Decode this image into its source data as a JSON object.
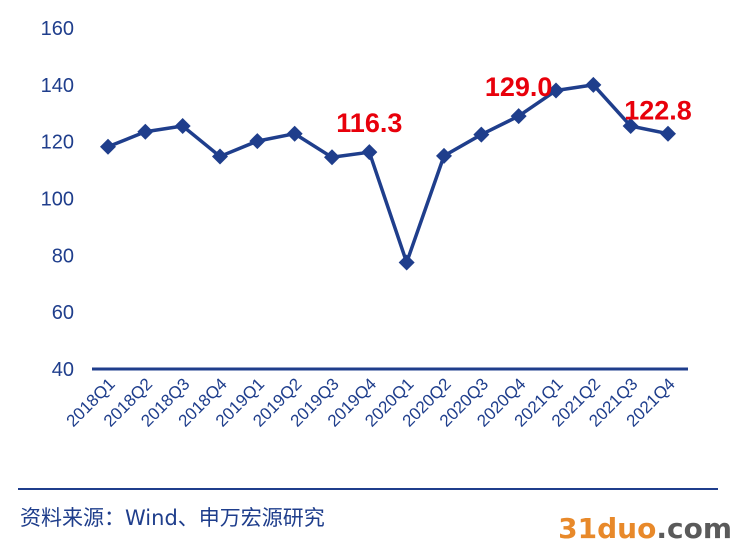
{
  "chart_data": {
    "type": "line",
    "categories": [
      "2018Q1",
      "2018Q2",
      "2018Q3",
      "2018Q4",
      "2019Q1",
      "2019Q2",
      "2019Q3",
      "2019Q4",
      "2020Q1",
      "2020Q2",
      "2020Q3",
      "2020Q4",
      "2021Q1",
      "2021Q2",
      "2021Q3",
      "2021Q4"
    ],
    "values": [
      118.2,
      123.5,
      125.5,
      114.8,
      120.2,
      122.8,
      114.5,
      116.3,
      77.5,
      115.0,
      122.5,
      129.0,
      138.0,
      140.0,
      125.5,
      122.8
    ],
    "ylim": [
      40,
      160
    ],
    "yticks": [
      "160",
      "140",
      "120",
      "100",
      "80",
      "60",
      "40"
    ],
    "annotations": [
      {
        "category": "2019Q4",
        "text": "116.3"
      },
      {
        "category": "2020Q4",
        "text": "129.0"
      },
      {
        "category": "2021Q4",
        "text": "122.8"
      }
    ],
    "grid": false,
    "colors": {
      "line": "#1f3e8c",
      "marker": "#1f3e8c",
      "annotation": "#e8000b",
      "axis": "#1f3e8c",
      "ticks": "#1f3e8c"
    }
  },
  "footer": {
    "source": "资料来源：Wind、申万宏源研究"
  },
  "watermark": {
    "number": "31duo",
    "domain": ".com"
  }
}
